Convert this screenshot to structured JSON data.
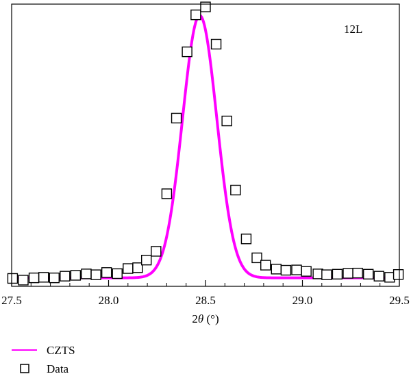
{
  "chart_data": {
    "type": "line",
    "title": "",
    "annotation": "12L",
    "xlabel_prefix": "2",
    "xlabel_symbol": "θ",
    "xlabel_suffix": " (°)",
    "ylabel": "",
    "xlim": [
      27.5,
      29.5
    ],
    "ylim": [
      0,
      1.0
    ],
    "x_ticks": [
      27.5,
      28.0,
      28.5,
      29.0,
      29.5
    ],
    "x_tick_labels": [
      "27.5",
      "28.0",
      "28.5",
      "29.0",
      "29.5"
    ],
    "grid": false,
    "legend_position": "bottom-left",
    "series": [
      {
        "name": "CZTS",
        "kind": "line",
        "color": "#ff00ff",
        "model": {
          "type": "gaussian",
          "center": 28.47,
          "sigma": 0.0885,
          "amplitude": 0.93,
          "baseline": 0.03
        }
      },
      {
        "name": "Data",
        "kind": "scatter",
        "marker": "open-square",
        "color": "#000000",
        "points": [
          [
            27.505,
            0.028
          ],
          [
            27.56,
            0.022
          ],
          [
            27.615,
            0.03
          ],
          [
            27.665,
            0.032
          ],
          [
            27.72,
            0.03
          ],
          [
            27.775,
            0.036
          ],
          [
            27.83,
            0.039
          ],
          [
            27.885,
            0.044
          ],
          [
            27.935,
            0.041
          ],
          [
            27.99,
            0.049
          ],
          [
            28.045,
            0.045
          ],
          [
            28.1,
            0.063
          ],
          [
            28.15,
            0.066
          ],
          [
            28.195,
            0.093
          ],
          [
            28.245,
            0.124
          ],
          [
            28.3,
            0.328
          ],
          [
            28.35,
            0.596
          ],
          [
            28.405,
            0.831
          ],
          [
            28.45,
            0.962
          ],
          [
            28.5,
            0.99
          ],
          [
            28.555,
            0.858
          ],
          [
            28.61,
            0.586
          ],
          [
            28.655,
            0.341
          ],
          [
            28.71,
            0.168
          ],
          [
            28.765,
            0.101
          ],
          [
            28.81,
            0.075
          ],
          [
            28.865,
            0.061
          ],
          [
            28.915,
            0.057
          ],
          [
            28.97,
            0.058
          ],
          [
            29.02,
            0.053
          ],
          [
            29.08,
            0.044
          ],
          [
            29.125,
            0.041
          ],
          [
            29.18,
            0.043
          ],
          [
            29.235,
            0.046
          ],
          [
            29.285,
            0.047
          ],
          [
            29.34,
            0.043
          ],
          [
            29.395,
            0.036
          ],
          [
            29.45,
            0.032
          ],
          [
            29.495,
            0.042
          ]
        ]
      }
    ]
  }
}
